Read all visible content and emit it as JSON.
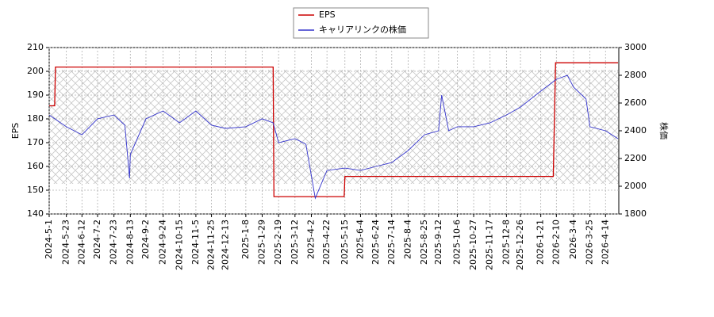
{
  "chart_data": {
    "type": "line",
    "ylabel": "EPS",
    "y2label": "株価",
    "xlim": [
      "2024-5-1",
      "2026-5-1"
    ],
    "xticks": [
      "2024-5-1",
      "2024-5-23",
      "2024-6-12",
      "2024-7-2",
      "2024-7-23",
      "2024-8-13",
      "2024-9-2",
      "2024-9-24",
      "2024-10-15",
      "2024-11-5",
      "2024-11-25",
      "2024-12-13",
      "2025-1-8",
      "2025-1-29",
      "2025-2-19",
      "2025-3-12",
      "2025-4-2",
      "2025-4-22",
      "2025-5-15",
      "2025-6-4",
      "2025-6-24",
      "2025-7-14",
      "2025-8-4",
      "2025-8-25",
      "2025-9-12",
      "2025-10-6",
      "2025-10-27",
      "2025-11-17",
      "2025-12-8",
      "2025-12-26",
      "2026-1-21",
      "2026-2-10",
      "2026-3-4",
      "2026-3-25",
      "2026-4-14"
    ],
    "ylim": [
      140,
      210
    ],
    "yticks": [
      140,
      150,
      160,
      170,
      180,
      190,
      200,
      210
    ],
    "y2lim": [
      1800,
      3000
    ],
    "y2ticks": [
      1800,
      2000,
      2200,
      2400,
      2600,
      2800,
      3000
    ],
    "grid": true,
    "series": [
      {
        "name": "EPS",
        "color": "#cc0000",
        "axis": "y",
        "x": [
          "2024-5-1",
          "2024-5-8",
          "2024-5-9",
          "2025-2-12",
          "2025-2-13",
          "2025-5-14",
          "2025-5-15",
          "2026-2-6",
          "2026-2-9",
          "2026-4-30"
        ],
        "values": [
          185.5,
          185.5,
          201.8,
          201.8,
          147.3,
          147.3,
          155.8,
          155.8,
          203.6,
          203.6
        ]
      },
      {
        "name": "キャリアリンクの株価",
        "color": "#3333cc",
        "axis": "y2",
        "x": [
          "2024-5-1",
          "2024-5-23",
          "2024-6-12",
          "2024-7-2",
          "2024-7-23",
          "2024-8-6",
          "2024-8-12",
          "2024-8-13",
          "2024-9-2",
          "2024-9-24",
          "2024-10-15",
          "2024-11-5",
          "2024-11-25",
          "2024-12-13",
          "2025-1-8",
          "2025-1-29",
          "2025-2-12",
          "2025-2-19",
          "2025-3-12",
          "2025-3-26",
          "2025-4-7",
          "2025-4-22",
          "2025-5-15",
          "2025-6-4",
          "2025-6-24",
          "2025-7-14",
          "2025-8-4",
          "2025-8-25",
          "2025-9-12",
          "2025-9-16",
          "2025-9-25",
          "2025-10-6",
          "2025-10-27",
          "2025-11-17",
          "2025-12-8",
          "2025-12-26",
          "2026-1-21",
          "2026-2-10",
          "2026-2-24",
          "2026-3-4",
          "2026-3-20",
          "2026-3-25",
          "2026-4-14",
          "2026-4-30"
        ],
        "values": [
          2514,
          2429,
          2371,
          2486,
          2514,
          2440,
          2057,
          2229,
          2486,
          2543,
          2457,
          2543,
          2440,
          2417,
          2429,
          2486,
          2457,
          2314,
          2343,
          2303,
          1914,
          2114,
          2131,
          2114,
          2143,
          2171,
          2257,
          2371,
          2400,
          2657,
          2400,
          2429,
          2429,
          2457,
          2514,
          2571,
          2686,
          2771,
          2800,
          2714,
          2629,
          2429,
          2400,
          2343
        ]
      }
    ]
  }
}
